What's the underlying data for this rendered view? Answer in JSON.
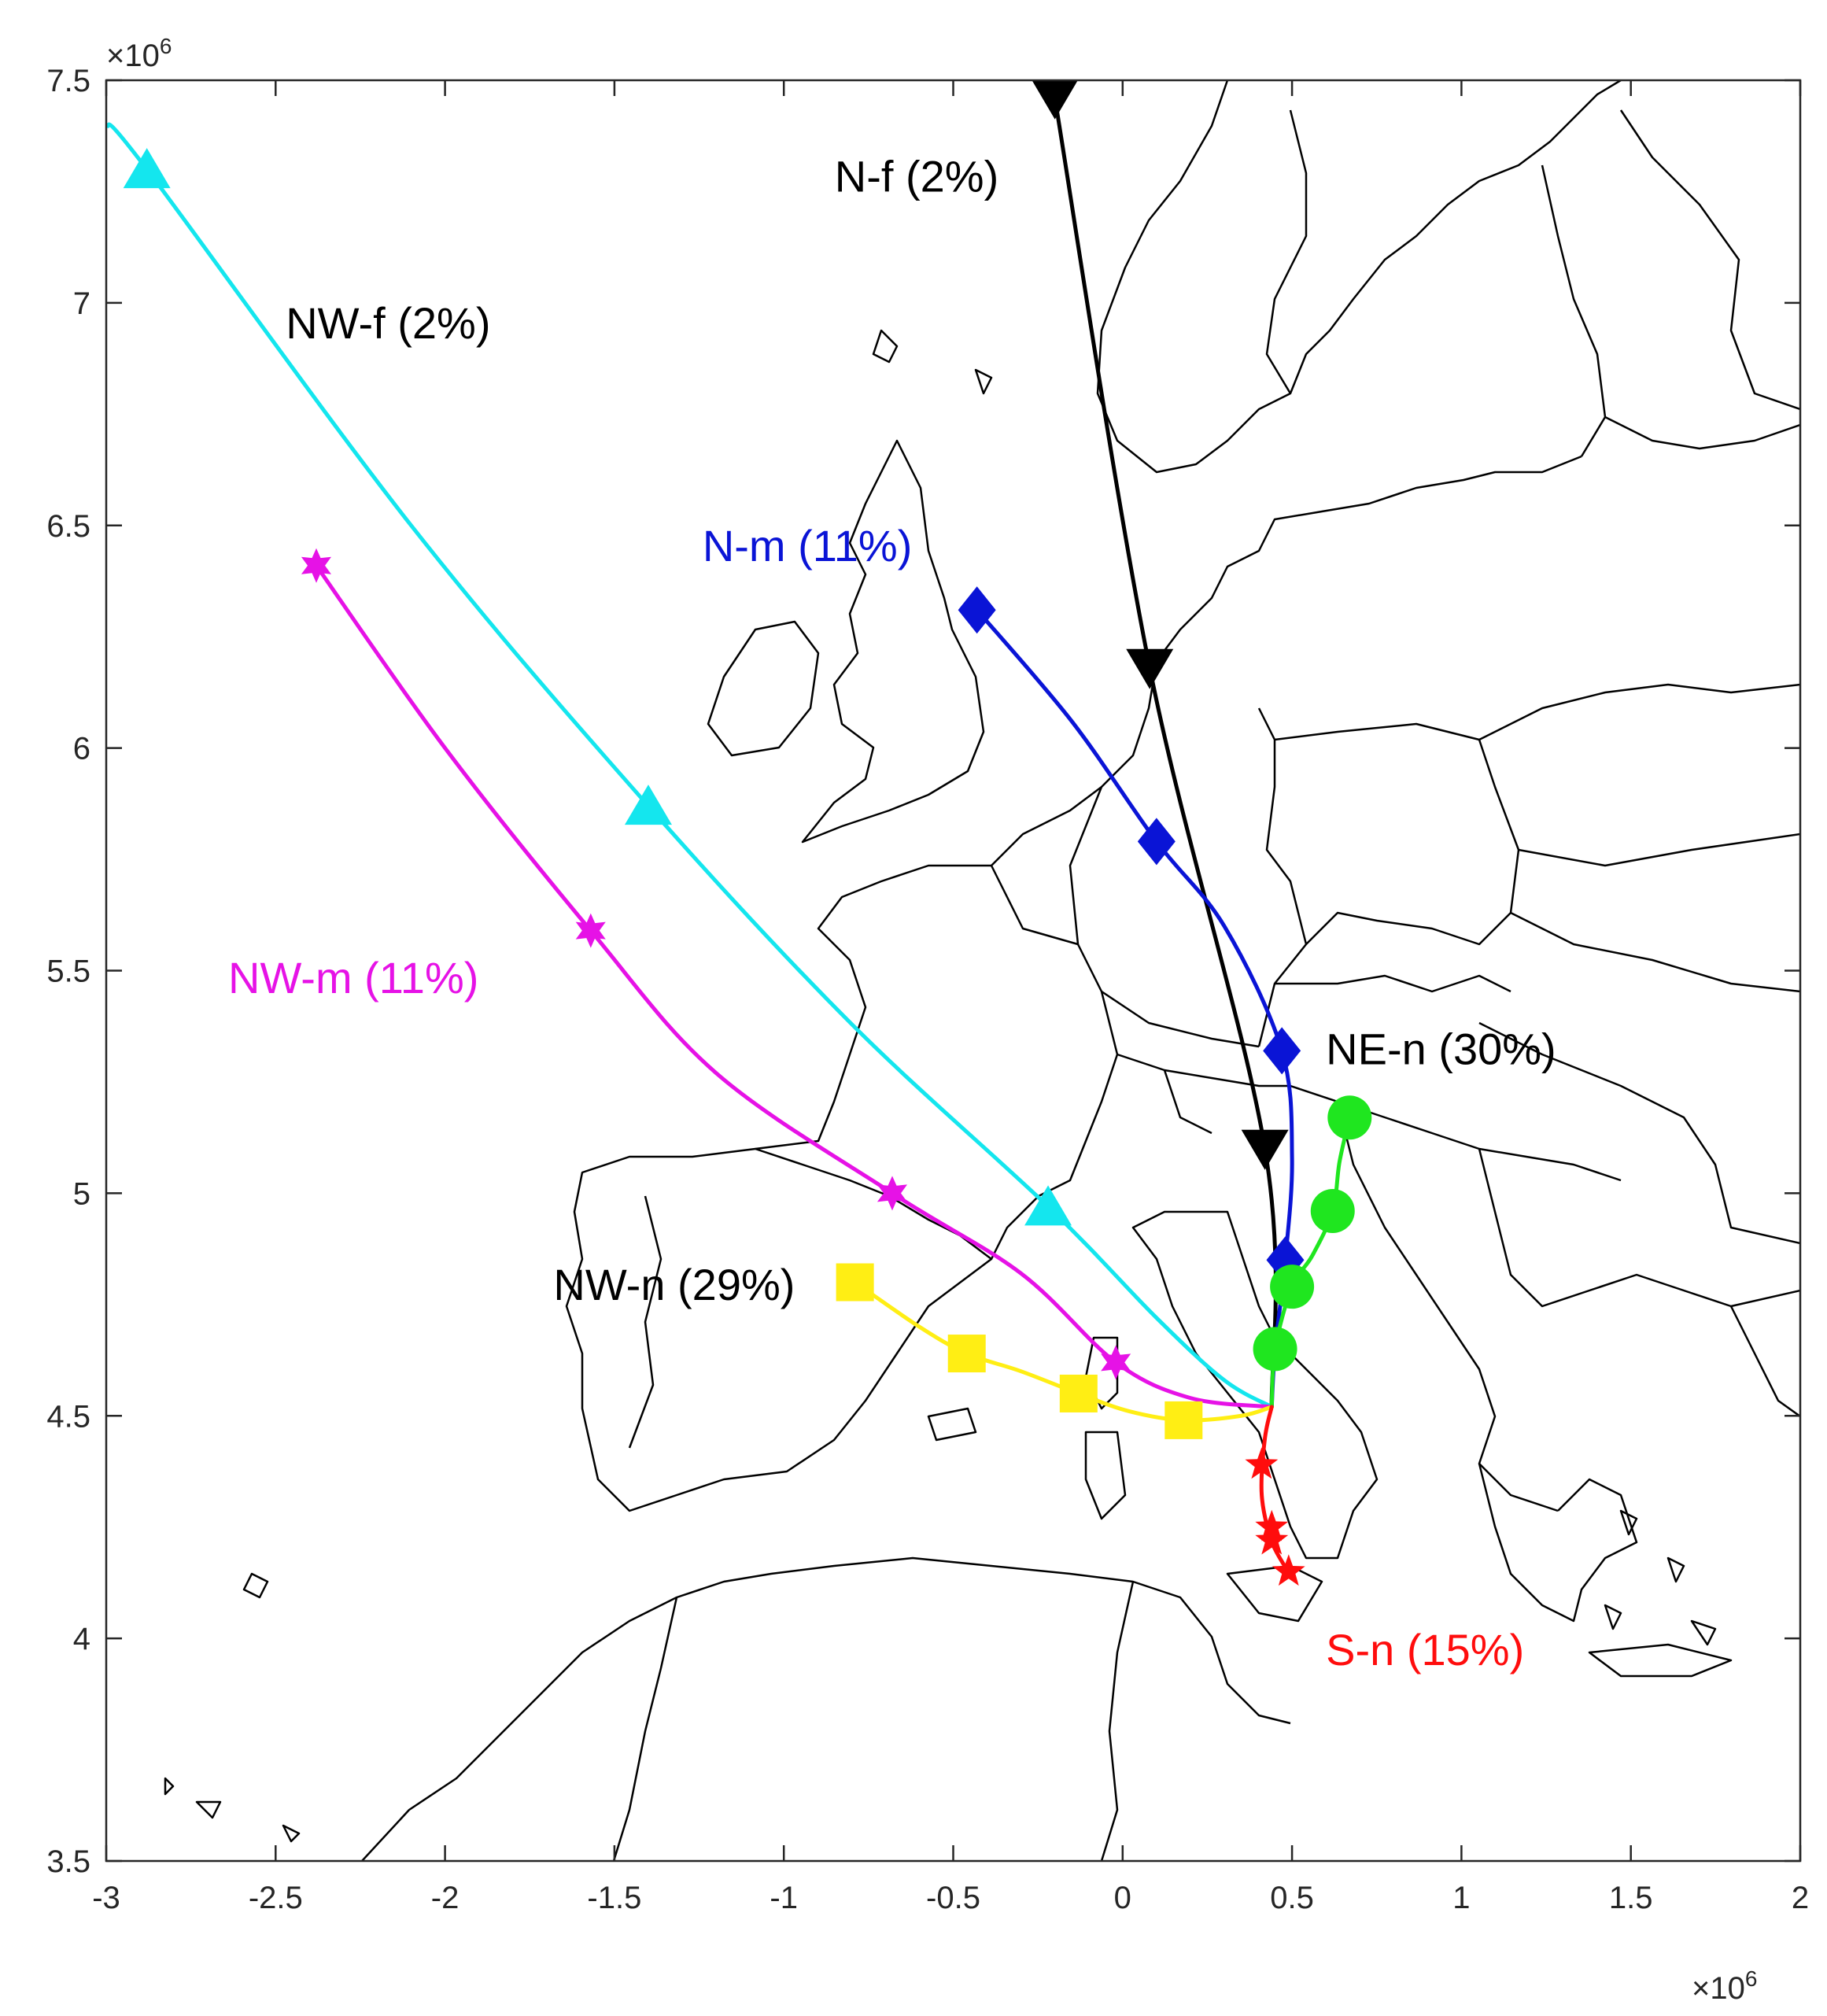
{
  "chart_data": {
    "type": "line",
    "title": "",
    "xlabel": "",
    "ylabel": "",
    "xlim": [
      -3000000,
      2000000
    ],
    "ylim": [
      3500000,
      7500000
    ],
    "x_ticks": [
      -3,
      -2.5,
      -2,
      -1.5,
      -1,
      -0.5,
      0,
      0.5,
      1,
      1.5,
      2
    ],
    "x_tick_labels": [
      "-3",
      "-2.5",
      "-2",
      "-1.5",
      "-1",
      "-0.5",
      "0",
      "0.5",
      "1",
      "1.5",
      "2"
    ],
    "y_ticks": [
      3.5,
      4,
      4.5,
      5,
      5.5,
      6,
      6.5,
      7,
      7.5
    ],
    "y_tick_labels": [
      "3.5",
      "4",
      "4.5",
      "5",
      "5.5",
      "6",
      "6.5",
      "7",
      "7.5"
    ],
    "x_multiplier": {
      "base": "×10",
      "exponent": "6"
    },
    "y_multiplier": {
      "base": "×10",
      "exponent": "6"
    },
    "grid": false,
    "background": "coastline and country-border map of Europe, North Africa and the Mediterranean",
    "series": [
      {
        "name": "N-f (2%)",
        "color": "#000000",
        "marker": "triangle-down",
        "x": [
          -200000,
          80000,
          420000,
          440000
        ],
        "y": [
          7460000,
          6180000,
          5100000,
          4520000
        ],
        "markers": [
          [
            -200000,
            7460000
          ],
          [
            80000,
            6180000
          ],
          [
            420000,
            5100000
          ]
        ]
      },
      {
        "name": "N-m (11%)",
        "color": "#0a14d6",
        "marker": "diamond",
        "x": [
          -430000,
          -150000,
          100000,
          300000,
          470000,
          500000,
          480000,
          450000,
          440000
        ],
        "y": [
          6310000,
          6060000,
          5790000,
          5600000,
          5320000,
          5080000,
          4850000,
          4650000,
          4520000
        ],
        "markers": [
          [
            -430000,
            6310000
          ],
          [
            100000,
            5790000
          ],
          [
            470000,
            5320000
          ],
          [
            480000,
            4850000
          ]
        ]
      },
      {
        "name": "NW-f (2%)",
        "color": "#14e6ee",
        "marker": "triangle-up",
        "x": [
          -3000000,
          -2880000,
          -2100000,
          -1400000,
          -800000,
          -220000,
          100000,
          300000,
          440000
        ],
        "y": [
          7400000,
          7300000,
          6500000,
          5870000,
          5380000,
          4970000,
          4720000,
          4580000,
          4520000
        ],
        "markers": [
          [
            -2880000,
            7300000
          ],
          [
            -1400000,
            5870000
          ],
          [
            -220000,
            4970000
          ]
        ]
      },
      {
        "name": "NW-m (11%)",
        "color": "#e612e6",
        "marker": "hexagram",
        "x": [
          -2380000,
          -2000000,
          -1570000,
          -1200000,
          -680000,
          -300000,
          -20000,
          200000,
          440000
        ],
        "y": [
          6410000,
          6000000,
          5590000,
          5270000,
          5000000,
          4820000,
          4620000,
          4540000,
          4520000
        ],
        "markers": [
          [
            -2380000,
            6410000
          ],
          [
            -1570000,
            5590000
          ],
          [
            -680000,
            5000000
          ],
          [
            -20000,
            4620000
          ]
        ]
      },
      {
        "name": "NW-n (29%)",
        "color": "#ffee14",
        "marker": "square",
        "x": [
          -790000,
          -600000,
          -460000,
          -300000,
          -130000,
          20000,
          180000,
          350000,
          440000
        ],
        "y": [
          4800000,
          4700000,
          4640000,
          4600000,
          4550000,
          4510000,
          4490000,
          4500000,
          4520000
        ],
        "markers": [
          [
            -790000,
            4800000
          ],
          [
            -460000,
            4640000
          ],
          [
            -130000,
            4550000
          ],
          [
            180000,
            4490000
          ]
        ]
      },
      {
        "name": "NE-n (30%)",
        "color": "#1fe61f",
        "marker": "circle",
        "x": [
          670000,
          640000,
          620000,
          560000,
          500000,
          450000,
          440000
        ],
        "y": [
          5170000,
          5070000,
          4960000,
          4860000,
          4790000,
          4650000,
          4520000
        ],
        "markers": [
          [
            670000,
            5170000
          ],
          [
            620000,
            4960000
          ],
          [
            500000,
            4790000
          ],
          [
            450000,
            4650000
          ]
        ]
      },
      {
        "name": "S-n (15%)",
        "color": "#ff0d0d",
        "marker": "pentagram",
        "x": [
          440000,
          420000,
          410000,
          430000,
          450000,
          480000
        ],
        "y": [
          4520000,
          4450000,
          4330000,
          4240000,
          4200000,
          4160000
        ],
        "markers": [
          [
            410000,
            4390000
          ],
          [
            440000,
            4250000
          ],
          [
            440000,
            4220000
          ],
          [
            490000,
            4150000
          ]
        ]
      }
    ],
    "annotations": [
      {
        "text": "N-f (2%)",
        "x": -850000,
        "y": 7250000,
        "color": "#000000"
      },
      {
        "text": "NW-f (2%)",
        "x": -2470000,
        "y": 6920000,
        "color": "#000000"
      },
      {
        "text": "N-m (11%)",
        "x": -1240000,
        "y": 6420000,
        "color": "#0a14d6"
      },
      {
        "text": "NW-m (11%)",
        "x": -2640000,
        "y": 5450000,
        "color": "#e612e6"
      },
      {
        "text": "NE-n (30%)",
        "x": 600000,
        "y": 5290000,
        "color": "#000000"
      },
      {
        "text": "NW-n (29%)",
        "x": -1680000,
        "y": 4760000,
        "color": "#000000"
      },
      {
        "text": "S-n (15%)",
        "x": 600000,
        "y": 3940000,
        "color": "#ff0d0d"
      }
    ]
  }
}
